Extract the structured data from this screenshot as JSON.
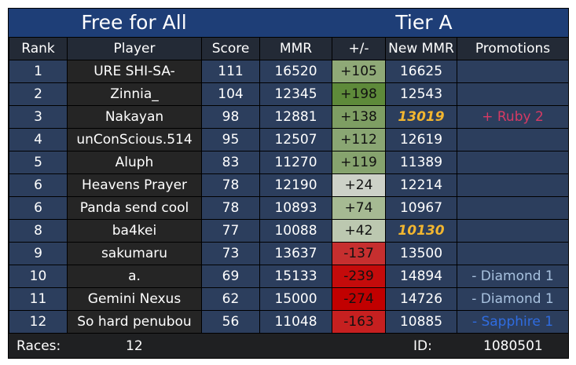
{
  "header": {
    "mode": "Free for All",
    "tier": "Tier A"
  },
  "columns": [
    "Rank",
    "Player",
    "Score",
    "MMR",
    "+/-",
    "New MMR",
    "Promotions"
  ],
  "rows": [
    {
      "rank": "1",
      "player": "URE SHI-SA-",
      "score": "111",
      "mmr": "16520",
      "delta": "+105",
      "new_mmr": "16625",
      "promotion": "",
      "delta_color": "#8fa977",
      "new_mmr_highlight": false,
      "promotion_color": ""
    },
    {
      "rank": "2",
      "player": "Zinnia_",
      "score": "104",
      "mmr": "12345",
      "delta": "+198",
      "new_mmr": "12543",
      "promotion": "",
      "delta_color": "#5e8a3a",
      "new_mmr_highlight": false,
      "promotion_color": ""
    },
    {
      "rank": "3",
      "player": "Nakayan",
      "score": "98",
      "mmr": "12881",
      "delta": "+138",
      "new_mmr": "13019",
      "promotion": "+ Ruby 2",
      "delta_color": "#7e9e63",
      "new_mmr_highlight": true,
      "promotion_color": "#d63a64"
    },
    {
      "rank": "4",
      "player": "unConScious.514",
      "score": "95",
      "mmr": "12507",
      "delta": "+112",
      "new_mmr": "12619",
      "promotion": "",
      "delta_color": "#8aa673",
      "new_mmr_highlight": false,
      "promotion_color": ""
    },
    {
      "rank": "5",
      "player": "Aluph",
      "score": "83",
      "mmr": "11270",
      "delta": "+119",
      "new_mmr": "11389",
      "promotion": "",
      "delta_color": "#86a36e",
      "new_mmr_highlight": false,
      "promotion_color": ""
    },
    {
      "rank": "6",
      "player": "Heavens Prayer",
      "score": "78",
      "mmr": "12190",
      "delta": "+24",
      "new_mmr": "12214",
      "promotion": "",
      "delta_color": "#cdd1c8",
      "new_mmr_highlight": false,
      "promotion_color": ""
    },
    {
      "rank": "6",
      "player": "Panda send cool",
      "score": "78",
      "mmr": "10893",
      "delta": "+74",
      "new_mmr": "10967",
      "promotion": "",
      "delta_color": "#a6ba93",
      "new_mmr_highlight": false,
      "promotion_color": ""
    },
    {
      "rank": "8",
      "player": "ba4kei",
      "score": "77",
      "mmr": "10088",
      "delta": "+42",
      "new_mmr": "10130",
      "promotion": "",
      "delta_color": "#bcc8b0",
      "new_mmr_highlight": true,
      "promotion_color": ""
    },
    {
      "rank": "9",
      "player": "sakumaru",
      "score": "73",
      "mmr": "13637",
      "delta": "-137",
      "new_mmr": "13500",
      "promotion": "",
      "delta_color": "#c62f2f",
      "new_mmr_highlight": false,
      "promotion_color": ""
    },
    {
      "rank": "10",
      "player": "a.",
      "score": "69",
      "mmr": "15133",
      "delta": "-239",
      "new_mmr": "14894",
      "promotion": "- Diamond 1",
      "delta_color": "#c40b0b",
      "new_mmr_highlight": false,
      "promotion_color": "#a8c2df"
    },
    {
      "rank": "11",
      "player": "Gemini Nexus",
      "score": "62",
      "mmr": "15000",
      "delta": "-274",
      "new_mmr": "14726",
      "promotion": "- Diamond 1",
      "delta_color": "#c10000",
      "new_mmr_highlight": false,
      "promotion_color": "#a8c2df"
    },
    {
      "rank": "12",
      "player": "So hard penubou",
      "score": "56",
      "mmr": "11048",
      "delta": "-163",
      "new_mmr": "10885",
      "promotion": "- Sapphire 1",
      "delta_color": "#c62020",
      "new_mmr_highlight": false,
      "promotion_color": "#2f6ce0"
    }
  ],
  "footer": {
    "races_label": "Races:",
    "races_value": "12",
    "id_label": "ID:",
    "id_value": "1080501"
  }
}
